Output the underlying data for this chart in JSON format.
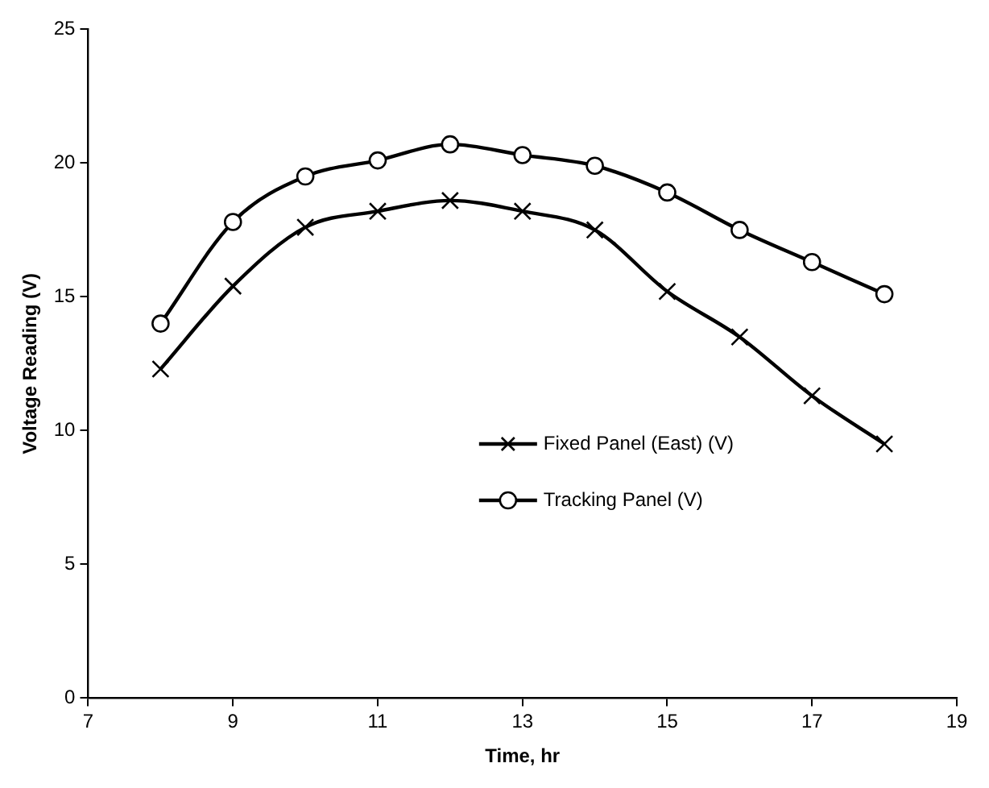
{
  "chart_data": {
    "type": "line",
    "xlabel": "Time, hr",
    "ylabel": "Voltage Reading (V)",
    "x": [
      8,
      9,
      10,
      11,
      12,
      13,
      14,
      15,
      16,
      17,
      18
    ],
    "series": [
      {
        "name": "Fixed Panel (East) (V)",
        "color": "#000000",
        "marker": "cross",
        "values": [
          12.3,
          15.4,
          17.6,
          18.2,
          18.6,
          18.2,
          17.5,
          15.2,
          13.5,
          11.3,
          9.5
        ]
      },
      {
        "name": "Tracking Panel (V)",
        "color": "#000000",
        "marker": "circle",
        "values": [
          14.0,
          17.8,
          19.5,
          20.1,
          20.7,
          20.3,
          19.9,
          18.9,
          17.5,
          16.3,
          15.1
        ]
      }
    ],
    "xlim": [
      7,
      19
    ],
    "xticks": [
      7,
      9,
      11,
      13,
      15,
      17,
      19
    ],
    "ylim": [
      0,
      25
    ],
    "yticks": [
      0,
      5,
      10,
      15,
      20,
      25
    ],
    "grid": false,
    "legend": "center",
    "line_style": "solid"
  }
}
